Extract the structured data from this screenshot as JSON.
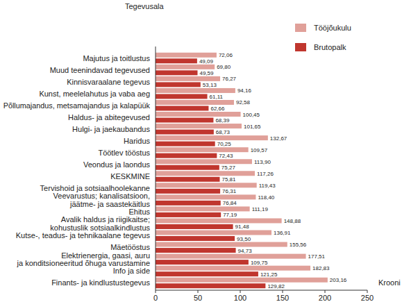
{
  "chart_data": {
    "type": "bar",
    "orientation": "horizontal",
    "y_label": "Tegevusala",
    "x_label": "Krooni",
    "categories": [
      "Majutus ja toitlustus",
      "Muud teenindavad tegevused",
      "Kinnisvaraalane tegevus",
      "Kunst, meelelahutus ja vaba aeg",
      "Põllumajandus, metsamajandus ja kalapüük",
      "Haldus- ja abitegevused",
      "Hulgi- ja jaekaubandus",
      "Haridus",
      "Töötlev tööstus",
      "Veondus ja laondus",
      "KESKMINE",
      "Tervishoid ja sotsiaalhoolekanne",
      "Veevarustus; kanalisatsioon,\njäätme- ja saastekäitlus",
      "Ehitus",
      "Avalik haldus ja riigikaitse;\nkohustuslik sotsiaalkindlustus",
      "Kutse-, teadus- ja tehnikaalane tegevus",
      "Mäetööstus",
      "Elektrienergia, gaasi, auru\nja konditsioneeritud õhuga varustamine",
      "Info ja side",
      "Finants- ja kindlustustegevus"
    ],
    "series": [
      {
        "name": "Tööjõukulu",
        "color": "#e0a099",
        "values": [
          72.06,
          69.8,
          76.27,
          94.16,
          92.58,
          100.45,
          101.65,
          132.67,
          109.57,
          113.9,
          117.26,
          119.43,
          118.4,
          111.19,
          148.88,
          136.91,
          155.56,
          177.51,
          182.83,
          203.16
        ],
        "value_labels": [
          "72,06",
          "69,80",
          "76,27",
          "94,16",
          "92,58",
          "100,45",
          "101,65",
          "132,67",
          "109,57",
          "113,90",
          "117,26",
          "119,43",
          "118,40",
          "111,19",
          "148,88",
          "136,91",
          "155,56",
          "177,51",
          "182,83",
          "203,16"
        ]
      },
      {
        "name": "Brutopalk",
        "color": "#c0362e",
        "values": [
          49.09,
          49.59,
          53.13,
          61.11,
          62.66,
          68.39,
          68.73,
          70.25,
          72.43,
          75.27,
          75.81,
          76.31,
          76.84,
          77.19,
          91.48,
          93.5,
          94.73,
          109.75,
          121.25,
          129.82
        ],
        "value_labels": [
          "49,09",
          "49,59",
          "53,13",
          "61,11",
          "62,66",
          "68,39",
          "68,73",
          "70,25",
          "72,43",
          "75,27",
          "75,81",
          "76,31",
          "76,84",
          "77,19",
          "91,48",
          "93,50",
          "94,73",
          "109,75",
          "121,25",
          "129,82"
        ]
      }
    ],
    "xlim": [
      0,
      250
    ],
    "xticks": [
      0,
      50,
      100,
      150,
      200,
      250
    ],
    "data_labels": true,
    "legend": "top-right",
    "grid": false
  }
}
